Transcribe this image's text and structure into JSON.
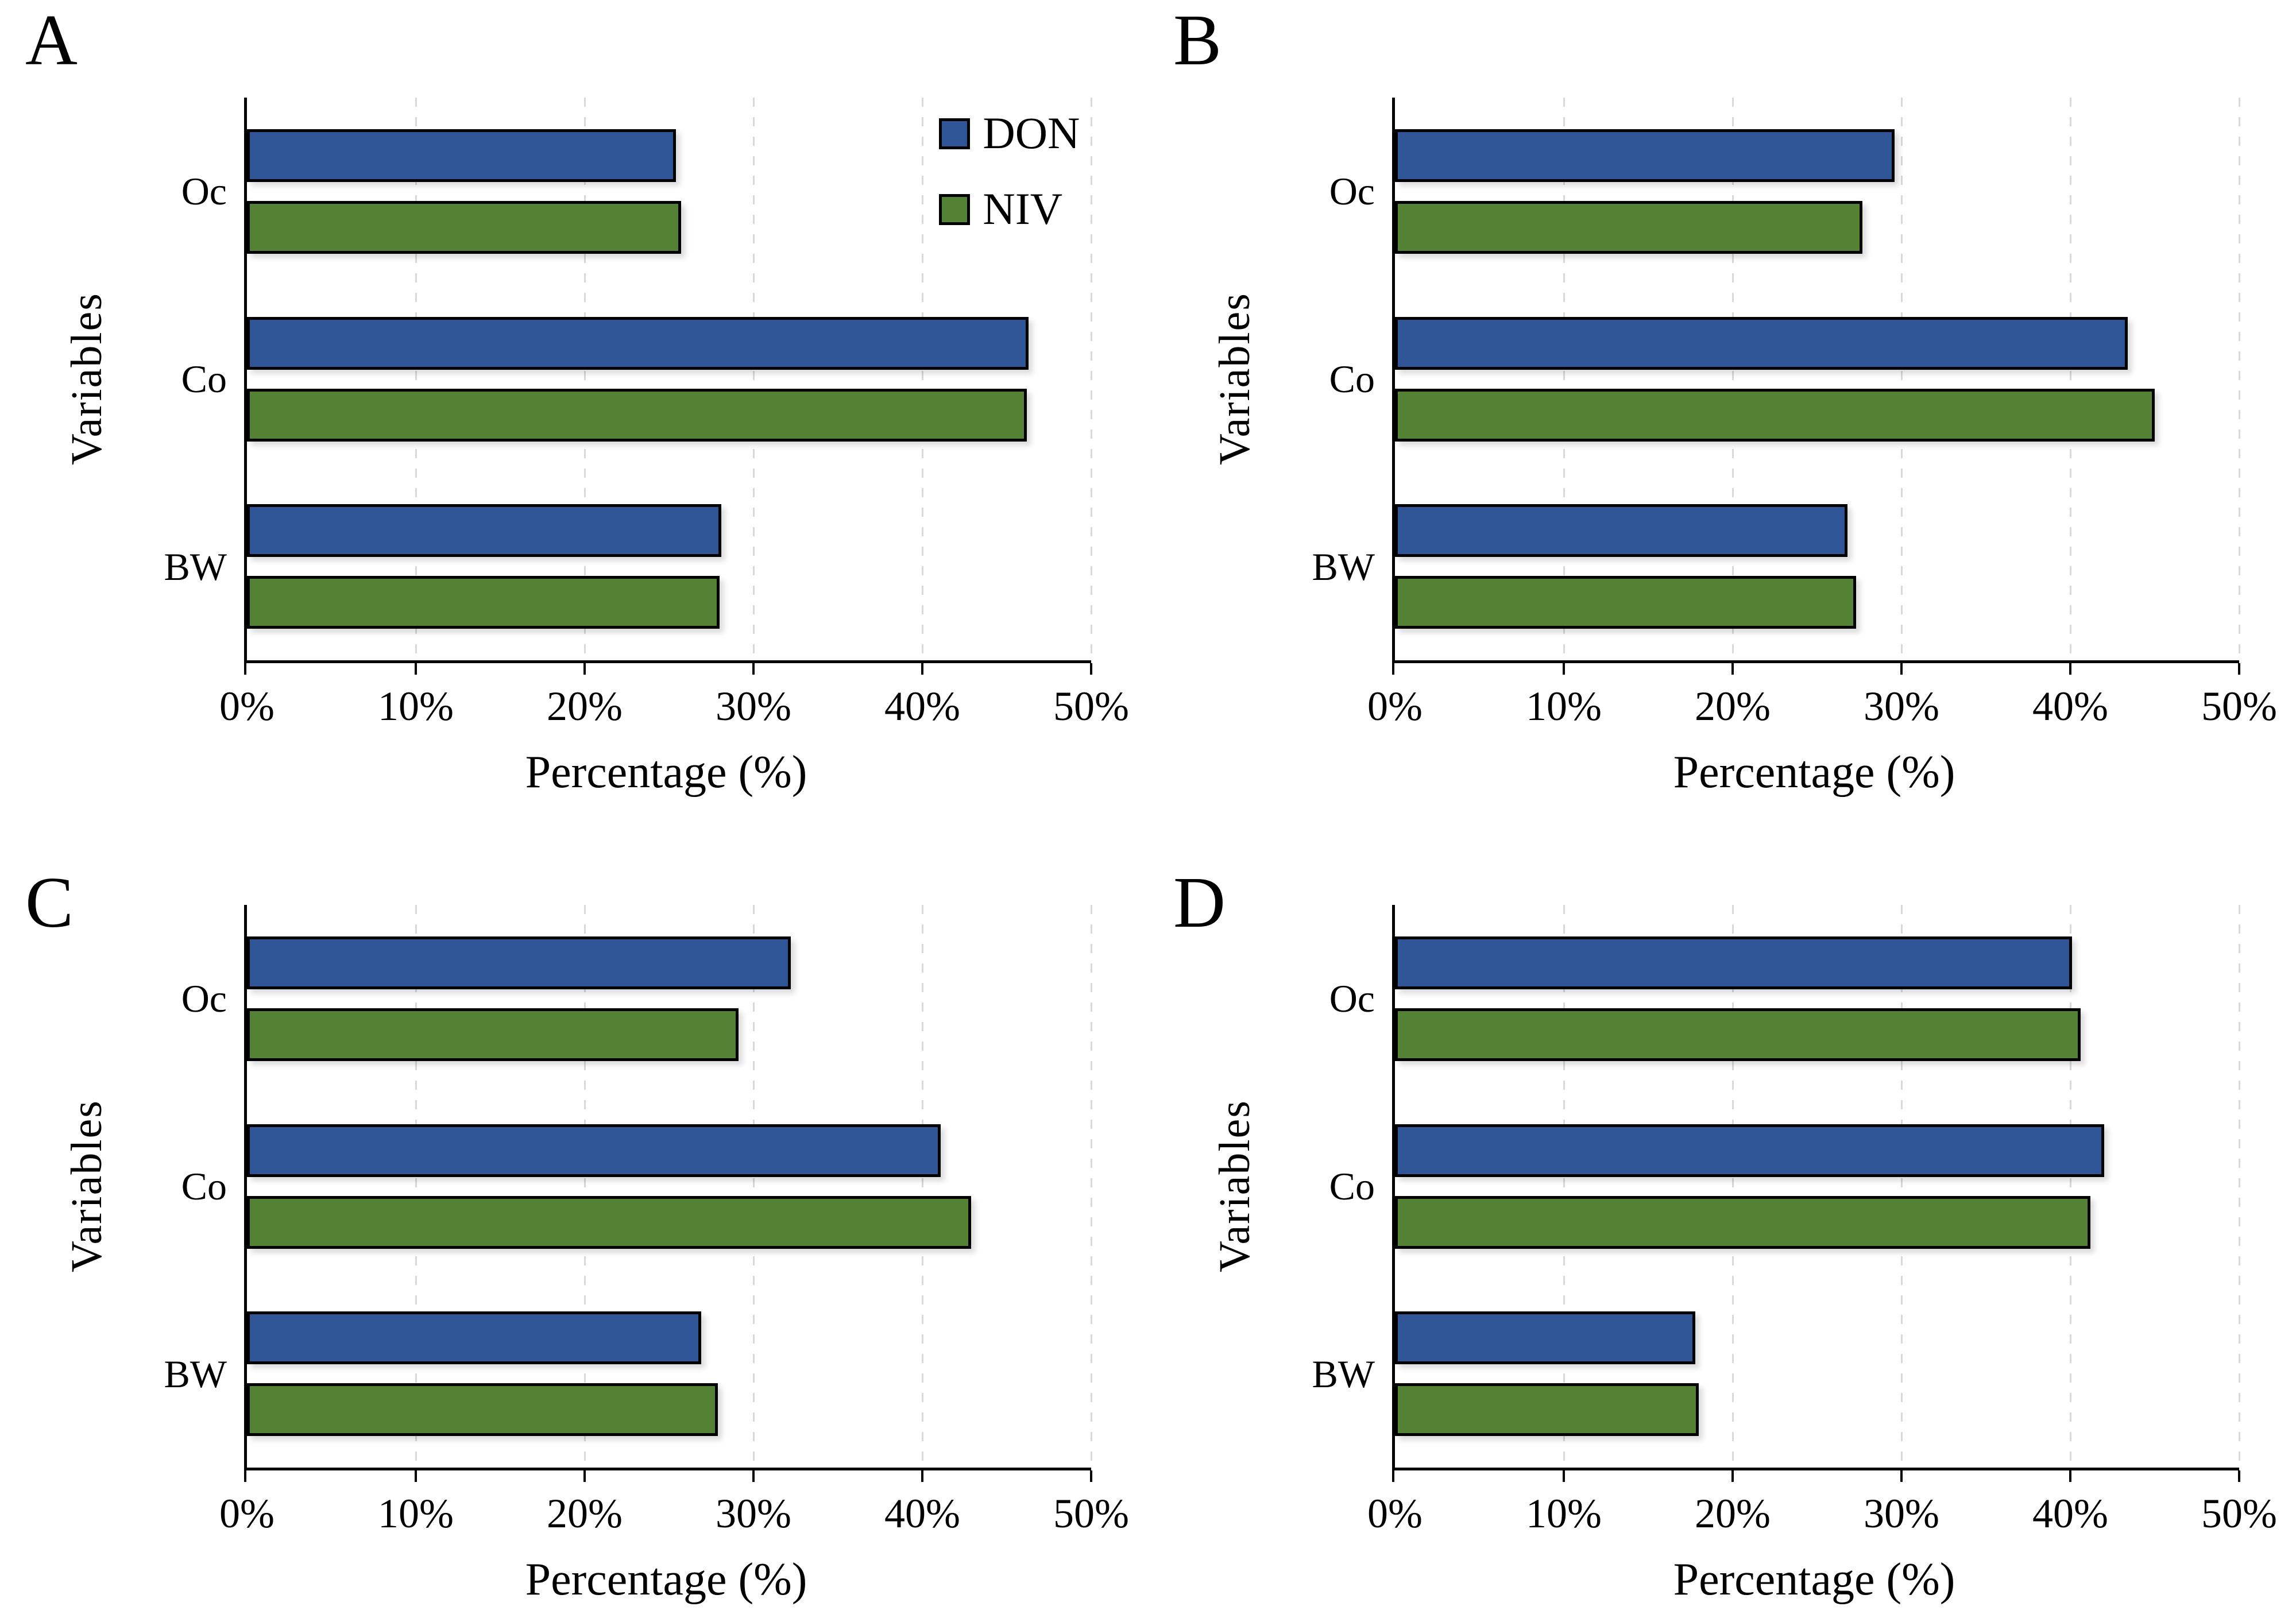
{
  "figure": {
    "background": "#ffffff",
    "text_color": "#000000",
    "gridline_color": "#d9d9d9",
    "bar_border_color": "#000000",
    "series_colors": {
      "DON": "#2F5597",
      "NIV": "#548235"
    },
    "legend": {
      "items": [
        {
          "label": "DON",
          "color": "#2F5597"
        },
        {
          "label": "NIV",
          "color": "#548235"
        }
      ],
      "position": "top-right-inside-panel-A"
    }
  },
  "chart_data": [
    {
      "panel": "A",
      "type": "bar",
      "orientation": "horizontal",
      "categories": [
        "Oc",
        "Co",
        "BW"
      ],
      "series": [
        {
          "name": "DON",
          "color": "#2F5597",
          "values": [
            25.4,
            46.3,
            28.1
          ]
        },
        {
          "name": "NIV",
          "color": "#548235",
          "values": [
            25.7,
            46.2,
            28.0
          ]
        }
      ],
      "xlabel": "Percentage (%)",
      "ylabel": "Variables",
      "xlim": [
        0,
        50
      ],
      "xticks": [
        "0%",
        "10%",
        "20%",
        "30%",
        "40%",
        "50%"
      ],
      "grid": "vertical-dashed",
      "show_legend": true
    },
    {
      "panel": "B",
      "type": "bar",
      "orientation": "horizontal",
      "categories": [
        "Oc",
        "Co",
        "BW"
      ],
      "series": [
        {
          "name": "DON",
          "color": "#2F5597",
          "values": [
            29.6,
            43.4,
            26.8
          ]
        },
        {
          "name": "NIV",
          "color": "#548235",
          "values": [
            27.7,
            45.0,
            27.3
          ]
        }
      ],
      "xlabel": "Percentage (%)",
      "ylabel": "Variables",
      "xlim": [
        0,
        50
      ],
      "xticks": [
        "0%",
        "10%",
        "20%",
        "30%",
        "40%",
        "50%"
      ],
      "grid": "vertical-dashed",
      "show_legend": false
    },
    {
      "panel": "C",
      "type": "bar",
      "orientation": "horizontal",
      "categories": [
        "Oc",
        "Co",
        "BW"
      ],
      "series": [
        {
          "name": "DON",
          "color": "#2F5597",
          "values": [
            32.2,
            41.1,
            26.9
          ]
        },
        {
          "name": "NIV",
          "color": "#548235",
          "values": [
            29.1,
            42.9,
            27.9
          ]
        }
      ],
      "xlabel": "Percentage (%)",
      "ylabel": "Variables",
      "xlim": [
        0,
        50
      ],
      "xticks": [
        "0%",
        "10%",
        "20%",
        "30%",
        "40%",
        "50%"
      ],
      "grid": "vertical-dashed",
      "show_legend": false
    },
    {
      "panel": "D",
      "type": "bar",
      "orientation": "horizontal",
      "categories": [
        "Oc",
        "Co",
        "BW"
      ],
      "series": [
        {
          "name": "DON",
          "color": "#2F5597",
          "values": [
            40.1,
            42.0,
            17.8
          ]
        },
        {
          "name": "NIV",
          "color": "#548235",
          "values": [
            40.6,
            41.2,
            18.0
          ]
        }
      ],
      "xlabel": "Percentage (%)",
      "ylabel": "Variables",
      "xlim": [
        0,
        50
      ],
      "xticks": [
        "0%",
        "10%",
        "20%",
        "30%",
        "40%",
        "50%"
      ],
      "grid": "vertical-dashed",
      "show_legend": false
    }
  ]
}
